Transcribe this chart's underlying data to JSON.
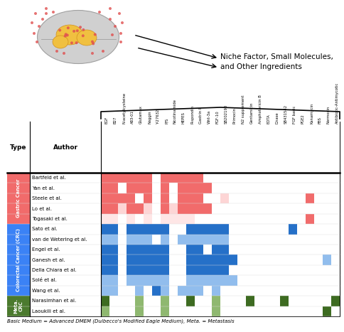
{
  "columns": [
    "EGF",
    "B27",
    "N-acetylcysteine",
    "A83-01",
    "Glutamax",
    "Noggin",
    "Y-27632",
    "P/S",
    "Nicotinamide",
    "HEPES",
    "R-spondin",
    "Gastrin I",
    "Wnt-3a",
    "FGF-10",
    "SB202190",
    "Primocin",
    "N2 supplement",
    "Gentamicin",
    "Amphotericin B",
    "EDTA",
    "Dnase",
    "SB431542",
    "FGF basic",
    "PGE2",
    "Kanamycin",
    "FBS",
    "Normocin",
    "Antibiotic-Antimycotic"
  ],
  "authors": [
    "Bartfeld et al.",
    "Yan et al.",
    "Steele et al.",
    "Lo et al.",
    "Togasaki et al.",
    "Sato et al.",
    "van de Wetering et al.",
    "Engel et al.",
    "Ganesh et al.",
    "Della Chiara et al.",
    "Solé et al.",
    "Wang et al.",
    "Narasimhan et al.",
    "Laoukili et al."
  ],
  "types": [
    "Gastric Cancer",
    "Gastric Cancer",
    "Gastric Cancer",
    "Gastric Cancer",
    "Gastric Cancer",
    "Colorectal Cancer (CRC)",
    "Colorectal Cancer (CRC)",
    "Colorectal Cancer (CRC)",
    "Colorectal Cancer (CRC)",
    "Colorectal Cancer (CRC)",
    "Colorectal Cancer (CRC)",
    "Colorectal Cancer (CRC)",
    "Meta.\nCRC",
    "Meta.\nCRC"
  ],
  "grid": [
    [
      1,
      1,
      1,
      1,
      1,
      1,
      0,
      1,
      1,
      1,
      1,
      1,
      0,
      0,
      0,
      0,
      0,
      0,
      0,
      0,
      0,
      0,
      0,
      0,
      0,
      0,
      0,
      0
    ],
    [
      1,
      1,
      0,
      1,
      1,
      1,
      0,
      1,
      0,
      1,
      1,
      1,
      1,
      0,
      0,
      0,
      0,
      0,
      0,
      0,
      0,
      0,
      0,
      0,
      0,
      0,
      0,
      0
    ],
    [
      1,
      1,
      1,
      1,
      0,
      1,
      0,
      1,
      0,
      1,
      1,
      1,
      0,
      0,
      0.5,
      0,
      0,
      0,
      0,
      0,
      0,
      0,
      0,
      0,
      1,
      0,
      0,
      0
    ],
    [
      1,
      1,
      0.5,
      1,
      1,
      0.5,
      0,
      1,
      0.5,
      1,
      1,
      1,
      1,
      0,
      0,
      0,
      0,
      0,
      0,
      0,
      0,
      0,
      0,
      0,
      0,
      0,
      0,
      0
    ],
    [
      0.3,
      0.3,
      0,
      0.3,
      0,
      0.3,
      0,
      0.3,
      0.3,
      0.3,
      0.3,
      0,
      0,
      0,
      0,
      0,
      0,
      0,
      0,
      0,
      0,
      0,
      0,
      0,
      1,
      0,
      0,
      0
    ],
    [
      1,
      1,
      0,
      1,
      1,
      1,
      1,
      1,
      0,
      0,
      1,
      1,
      1,
      1,
      1,
      0,
      0,
      0,
      0,
      0,
      0,
      0,
      1,
      0,
      0,
      0,
      0,
      0
    ],
    [
      0.5,
      0.5,
      0,
      0.5,
      0.5,
      0.5,
      0,
      0.5,
      0,
      0.5,
      0.5,
      0.5,
      0.5,
      0.5,
      0.5,
      0,
      0,
      0,
      0,
      0,
      0,
      0,
      0,
      0,
      0,
      0,
      0,
      0
    ],
    [
      1,
      1,
      0,
      1,
      1,
      1,
      1,
      1,
      0,
      0,
      1,
      1,
      0,
      1,
      1,
      0,
      0,
      0,
      0,
      0,
      0,
      0,
      0,
      0,
      0,
      0,
      0,
      0
    ],
    [
      1,
      1,
      0,
      1,
      1,
      1,
      1,
      1,
      0,
      0,
      1,
      1,
      1,
      1,
      1,
      1,
      0,
      0,
      0,
      0,
      0,
      0,
      0,
      0,
      0,
      0,
      0.5,
      0
    ],
    [
      1,
      1,
      0,
      1,
      1,
      1,
      1,
      1,
      0,
      0,
      1,
      1,
      1,
      1,
      1,
      0,
      0,
      0,
      0,
      0,
      0,
      0,
      0,
      0,
      0,
      0,
      0,
      0
    ],
    [
      0.5,
      0.5,
      0,
      0.5,
      0.5,
      0.5,
      0.5,
      0.5,
      0,
      0,
      0.5,
      0.5,
      0.5,
      0.5,
      0.5,
      0.5,
      0,
      0,
      0,
      0,
      0,
      0,
      0,
      0,
      0,
      0,
      0,
      0
    ],
    [
      0.5,
      0.5,
      0,
      0,
      0.5,
      0,
      1,
      0.5,
      0,
      0.5,
      0.5,
      0.5,
      0,
      0.5,
      0,
      0,
      0,
      0,
      0,
      0,
      0,
      0,
      0,
      0,
      0,
      0,
      0,
      0
    ],
    [
      1,
      0,
      0,
      0,
      0.5,
      0,
      0,
      0.5,
      0,
      0,
      1,
      0,
      0,
      0.5,
      0,
      0,
      0,
      1,
      0,
      0,
      0,
      1,
      0,
      0,
      0,
      0,
      0,
      1
    ],
    [
      0.5,
      0,
      0,
      0,
      0.5,
      0,
      0,
      0.5,
      0,
      0,
      0,
      0,
      0,
      0.5,
      0,
      0,
      0,
      0,
      0,
      0,
      0,
      0,
      0,
      0,
      0,
      0,
      1,
      0
    ]
  ],
  "gastric_full": "#F16B6B",
  "gastric_light": "#F9AAAA",
  "gastric_vlight": "#FDD5D5",
  "crc_full": "#2570C8",
  "crc_light": "#91BDED",
  "meta_full": "#3D6B21",
  "meta_light": "#8FB870",
  "type_gastric_bg": "#F16B6B",
  "type_crc_bg": "#3B82F6",
  "type_meta_bg": "#4B7A2E",
  "footnote": "Basic Medium = Advanced DMEM (Dulbecco's Modified Eagle Medium), Meta. = Metastasis",
  "annotation_text": "Niche Factor, Small Molecules,\nand Other Ingredients"
}
